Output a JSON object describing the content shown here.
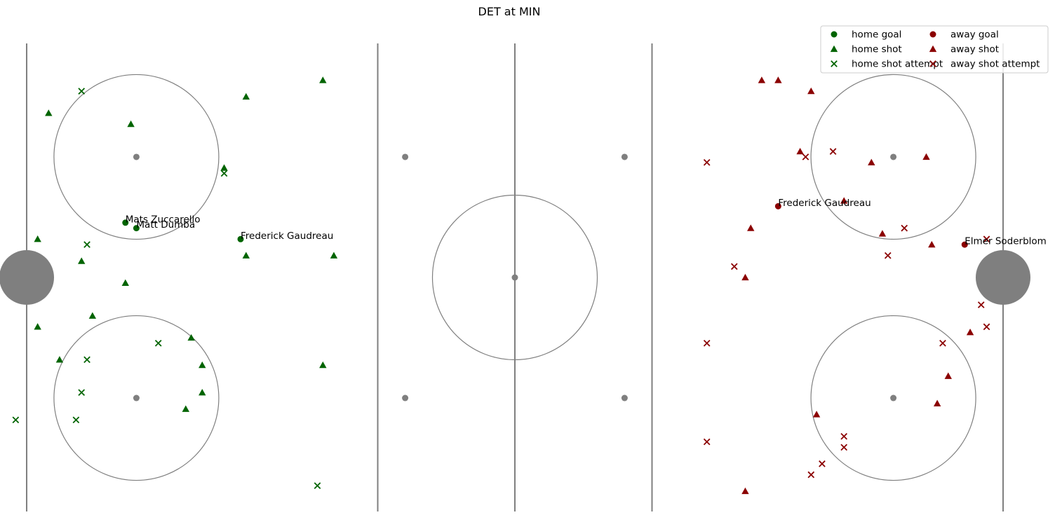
{
  "chart_data": {
    "type": "scatter",
    "title": "DET at MIN",
    "colors": {
      "home": "#006400",
      "away": "#8b0000",
      "rink": "#7f7f7f"
    },
    "legend": {
      "placement": "top-right",
      "entries": [
        {
          "key": "home_goal",
          "label": "home goal",
          "marker": "circle",
          "side": "home"
        },
        {
          "key": "away_goal",
          "label": "away goal",
          "marker": "circle",
          "side": "away"
        },
        {
          "key": "home_shot",
          "label": "home shot",
          "marker": "triangle",
          "side": "home"
        },
        {
          "key": "away_shot",
          "label": "away shot",
          "marker": "triangle",
          "side": "away"
        },
        {
          "key": "home_attempt",
          "label": "home shot attempt",
          "marker": "x",
          "side": "home"
        },
        {
          "key": "away_attempt",
          "label": "away shot attempt",
          "marker": "x",
          "side": "away"
        }
      ]
    },
    "rink": {
      "xlim": [
        -100,
        100
      ],
      "ylim": [
        -42.5,
        42.5
      ],
      "vertical_lines": [
        -89,
        -25,
        0,
        25,
        89
      ],
      "nets": [
        -89,
        89
      ],
      "faceoff_circles": [
        [
          -69,
          22
        ],
        [
          -69,
          -22
        ],
        [
          0,
          0
        ],
        [
          69,
          22
        ],
        [
          69,
          -22
        ]
      ],
      "faceoff_dots": [
        [
          -69,
          22
        ],
        [
          -69,
          -22
        ],
        [
          -20,
          22
        ],
        [
          -20,
          -22
        ],
        [
          0,
          0
        ],
        [
          20,
          22
        ],
        [
          20,
          -22
        ],
        [
          69,
          22
        ],
        [
          69,
          -22
        ]
      ]
    },
    "series": [
      {
        "name": "home goal",
        "points": [
          [
            -71,
            10
          ],
          [
            -69,
            9
          ],
          [
            -50,
            7
          ]
        ],
        "labels": [
          "Mats Zuccarello",
          "Matt Dumba",
          "Frederick Gaudreau"
        ]
      },
      {
        "name": "away goal",
        "points": [
          [
            48,
            13
          ],
          [
            82,
            6
          ]
        ],
        "labels": [
          "Frederick Gaudreau",
          "Elmer Soderblom"
        ]
      },
      {
        "name": "home shot",
        "points": [
          [
            -35,
            36
          ],
          [
            -49,
            33
          ],
          [
            -85,
            30
          ],
          [
            -70,
            28
          ],
          [
            -53,
            20
          ],
          [
            -87,
            7
          ],
          [
            -79,
            3
          ],
          [
            -71,
            -1
          ],
          [
            -49,
            4
          ],
          [
            -33,
            4
          ],
          [
            -77,
            -7
          ],
          [
            -87,
            -9
          ],
          [
            -59,
            -11
          ],
          [
            -83,
            -15
          ],
          [
            -57,
            -16
          ],
          [
            -35,
            -16
          ],
          [
            -57,
            -21
          ],
          [
            -60,
            -24
          ]
        ]
      },
      {
        "name": "away shot",
        "points": [
          [
            45,
            36
          ],
          [
            48,
            36
          ],
          [
            54,
            34
          ],
          [
            52,
            23
          ],
          [
            65,
            21
          ],
          [
            75,
            22
          ],
          [
            60,
            14
          ],
          [
            43,
            9
          ],
          [
            67,
            8
          ],
          [
            76,
            6
          ],
          [
            42,
            0
          ],
          [
            83,
            -10
          ],
          [
            79,
            -18
          ],
          [
            77,
            -23
          ],
          [
            55,
            -25
          ],
          [
            42,
            -39
          ]
        ]
      },
      {
        "name": "home shot attempt",
        "points": [
          [
            -79,
            34
          ],
          [
            -53,
            19
          ],
          [
            -78,
            6
          ],
          [
            -65,
            -12
          ],
          [
            -78,
            -15
          ],
          [
            -79,
            -21
          ],
          [
            -80,
            -26
          ],
          [
            -91,
            -26
          ],
          [
            -36,
            -38
          ]
        ]
      },
      {
        "name": "away shot attempt",
        "points": [
          [
            58,
            23
          ],
          [
            53,
            22
          ],
          [
            35,
            21
          ],
          [
            71,
            9
          ],
          [
            86,
            7
          ],
          [
            68,
            4
          ],
          [
            40,
            2
          ],
          [
            85,
            -5
          ],
          [
            86,
            -9
          ],
          [
            35,
            -12
          ],
          [
            78,
            -12
          ],
          [
            60,
            -29
          ],
          [
            35,
            -30
          ],
          [
            60,
            -31
          ],
          [
            56,
            -34
          ],
          [
            54,
            -36
          ]
        ]
      }
    ]
  }
}
